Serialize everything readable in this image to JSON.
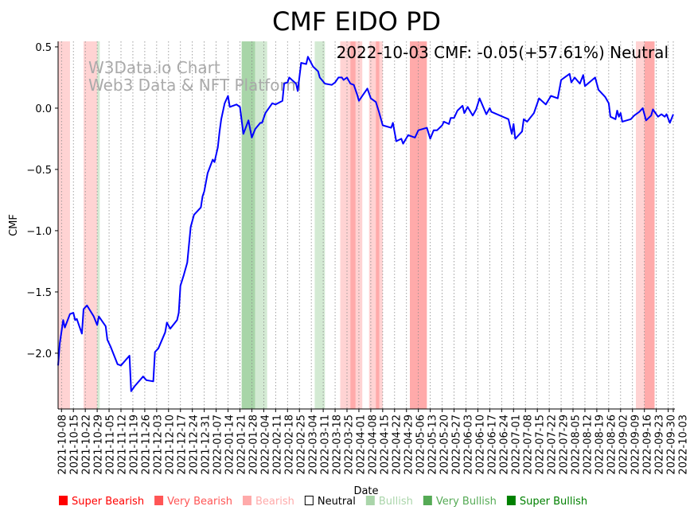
{
  "chart_data": {
    "type": "line",
    "title": "CMF EIDO PD",
    "annotation": "2022-10-03 CMF: -0.05(+57.61%) Neutral",
    "watermark": [
      "W3Data.io Chart",
      "Web3 Data & NFT Platform"
    ],
    "xlabel": "Date",
    "ylabel": "CMF",
    "ylim": [
      -2.455,
      0.545
    ],
    "start_date": "2021-10-06",
    "end_date": "2022-10-03",
    "yticks": [
      0.5,
      0.0,
      -0.5,
      -1.0,
      -1.5,
      -2.0
    ],
    "ytick_labels": [
      "0.5",
      "0.0",
      "−0.5",
      "−1.0",
      "−1.5",
      "−2.0"
    ],
    "xtick_labels": [
      "2021-10-08",
      "2021-10-15",
      "2021-10-22",
      "2021-10-29",
      "2021-11-05",
      "2021-11-12",
      "2021-11-19",
      "2021-11-26",
      "2021-12-03",
      "2021-12-10",
      "2021-12-17",
      "2021-12-24",
      "2021-12-31",
      "2022-01-07",
      "2022-01-14",
      "2022-01-21",
      "2022-01-28",
      "2022-02-04",
      "2022-02-11",
      "2022-02-18",
      "2022-02-25",
      "2022-03-04",
      "2022-03-11",
      "2022-03-18",
      "2022-03-25",
      "2022-04-01",
      "2022-04-08",
      "2022-04-15",
      "2022-04-22",
      "2022-04-29",
      "2022-05-06",
      "2022-05-13",
      "2022-05-20",
      "2022-05-27",
      "2022-06-03",
      "2022-06-10",
      "2022-06-17",
      "2022-06-24",
      "2022-07-01",
      "2022-07-08",
      "2022-07-15",
      "2022-07-22",
      "2022-07-29",
      "2022-08-05",
      "2022-08-12",
      "2022-08-19",
      "2022-08-26",
      "2022-09-02",
      "2022-09-09",
      "2022-09-16",
      "2022-09-23",
      "2022-09-30",
      "2022-10-03"
    ],
    "grid": "x-dotted",
    "series": [
      {
        "name": "CMF",
        "color": "#0000ff",
        "points_day_value": [
          [
            0,
            -2.1
          ],
          [
            1,
            -1.92
          ],
          [
            3,
            -1.73
          ],
          [
            4,
            -1.79
          ],
          [
            7,
            -1.68
          ],
          [
            9,
            -1.67
          ],
          [
            10,
            -1.73
          ],
          [
            11,
            -1.72
          ],
          [
            14,
            -1.84
          ],
          [
            15,
            -1.64
          ],
          [
            17,
            -1.61
          ],
          [
            21,
            -1.7
          ],
          [
            23,
            -1.77
          ],
          [
            24,
            -1.7
          ],
          [
            28,
            -1.78
          ],
          [
            29,
            -1.89
          ],
          [
            31,
            -1.95
          ],
          [
            35,
            -2.09
          ],
          [
            37,
            -2.1
          ],
          [
            42,
            -2.02
          ],
          [
            43,
            -2.31
          ],
          [
            45,
            -2.27
          ],
          [
            50,
            -2.19
          ],
          [
            52,
            -2.22
          ],
          [
            56,
            -2.23
          ],
          [
            57,
            -1.99
          ],
          [
            59,
            -1.96
          ],
          [
            63,
            -1.83
          ],
          [
            64,
            -1.75
          ],
          [
            66,
            -1.8
          ],
          [
            70,
            -1.73
          ],
          [
            71,
            -1.67
          ],
          [
            72,
            -1.45
          ],
          [
            74,
            -1.36
          ],
          [
            76,
            -1.26
          ],
          [
            78,
            -0.97
          ],
          [
            80,
            -0.87
          ],
          [
            84,
            -0.81
          ],
          [
            85,
            -0.72
          ],
          [
            86,
            -0.68
          ],
          [
            88,
            -0.53
          ],
          [
            91,
            -0.42
          ],
          [
            92,
            -0.44
          ],
          [
            94,
            -0.32
          ],
          [
            95,
            -0.19
          ],
          [
            96,
            -0.09
          ],
          [
            98,
            0.04
          ],
          [
            100,
            0.1
          ],
          [
            101,
            0.01
          ],
          [
            105,
            0.03
          ],
          [
            107,
            0.01
          ],
          [
            109,
            -0.21
          ],
          [
            112,
            -0.1
          ],
          [
            114,
            -0.24
          ],
          [
            116,
            -0.17
          ],
          [
            119,
            -0.12
          ],
          [
            120,
            -0.12
          ],
          [
            122,
            -0.04
          ],
          [
            126,
            0.04
          ],
          [
            128,
            0.03
          ],
          [
            132,
            0.06
          ],
          [
            133,
            0.2
          ],
          [
            135,
            0.21
          ],
          [
            136,
            0.25
          ],
          [
            140,
            0.2
          ],
          [
            141,
            0.14
          ],
          [
            143,
            0.37
          ],
          [
            146,
            0.36
          ],
          [
            147,
            0.42
          ],
          [
            150,
            0.34
          ],
          [
            153,
            0.3
          ],
          [
            154,
            0.25
          ],
          [
            157,
            0.2
          ],
          [
            161,
            0.19
          ],
          [
            163,
            0.21
          ],
          [
            165,
            0.25
          ],
          [
            167,
            0.25
          ],
          [
            168,
            0.23
          ],
          [
            170,
            0.25
          ],
          [
            172,
            0.2
          ],
          [
            174,
            0.19
          ],
          [
            176,
            0.11
          ],
          [
            177,
            0.06
          ],
          [
            182,
            0.16
          ],
          [
            184,
            0.08
          ],
          [
            187,
            0.05
          ],
          [
            189,
            -0.04
          ],
          [
            191,
            -0.14
          ],
          [
            196,
            -0.16
          ],
          [
            197,
            -0.12
          ],
          [
            199,
            -0.27
          ],
          [
            202,
            -0.25
          ],
          [
            203,
            -0.29
          ],
          [
            206,
            -0.22
          ],
          [
            210,
            -0.24
          ],
          [
            212,
            -0.18
          ],
          [
            217,
            -0.16
          ],
          [
            219,
            -0.25
          ],
          [
            221,
            -0.18
          ],
          [
            223,
            -0.18
          ],
          [
            226,
            -0.14
          ],
          [
            227,
            -0.11
          ],
          [
            230,
            -0.13
          ],
          [
            231,
            -0.08
          ],
          [
            233,
            -0.08
          ],
          [
            235,
            -0.02
          ],
          [
            238,
            0.02
          ],
          [
            239,
            -0.04
          ],
          [
            241,
            0.01
          ],
          [
            244,
            -0.06
          ],
          [
            246,
            -0.01
          ],
          [
            248,
            0.08
          ],
          [
            252,
            -0.05
          ],
          [
            254,
            0.0
          ],
          [
            255,
            -0.03
          ],
          [
            265,
            -0.09
          ],
          [
            267,
            -0.21
          ],
          [
            268,
            -0.13
          ],
          [
            269,
            -0.25
          ],
          [
            273,
            -0.19
          ],
          [
            274,
            -0.09
          ],
          [
            276,
            -0.11
          ],
          [
            280,
            -0.04
          ],
          [
            283,
            0.08
          ],
          [
            287,
            0.03
          ],
          [
            290,
            0.1
          ],
          [
            294,
            0.08
          ],
          [
            296,
            0.23
          ],
          [
            298,
            0.25
          ],
          [
            301,
            0.28
          ],
          [
            302,
            0.21
          ],
          [
            304,
            0.25
          ],
          [
            307,
            0.2
          ],
          [
            309,
            0.27
          ],
          [
            310,
            0.18
          ],
          [
            316,
            0.25
          ],
          [
            318,
            0.15
          ],
          [
            322,
            0.09
          ],
          [
            324,
            0.04
          ],
          [
            325,
            -0.07
          ],
          [
            328,
            -0.09
          ],
          [
            329,
            -0.02
          ],
          [
            330,
            -0.07
          ],
          [
            331,
            -0.04
          ],
          [
            332,
            -0.11
          ],
          [
            337,
            -0.09
          ],
          [
            339,
            -0.06
          ],
          [
            342,
            -0.03
          ],
          [
            344,
            0.0
          ],
          [
            346,
            -0.1
          ],
          [
            349,
            -0.06
          ],
          [
            350,
            -0.01
          ],
          [
            353,
            -0.07
          ],
          [
            355,
            -0.05
          ],
          [
            357,
            -0.07
          ],
          [
            358,
            -0.05
          ],
          [
            360,
            -0.12
          ],
          [
            362,
            -0.05
          ]
        ]
      }
    ],
    "regions_day_range": [
      {
        "state": "Bearish",
        "from": 0,
        "to": 7
      },
      {
        "state": "Bearish",
        "from": 15,
        "to": 23
      },
      {
        "state": "Bullish",
        "from": 23,
        "to": 24.5
      },
      {
        "state": "Very Bullish",
        "from": 108,
        "to": 116
      },
      {
        "state": "Bullish",
        "from": 116,
        "to": 123
      },
      {
        "state": "Bullish",
        "from": 151,
        "to": 157
      },
      {
        "state": "Bearish",
        "from": 166,
        "to": 179
      },
      {
        "state": "Very Bearish",
        "from": 172,
        "to": 175
      },
      {
        "state": "Bearish",
        "from": 183,
        "to": 191
      },
      {
        "state": "Very Bearish",
        "from": 187,
        "to": 189
      },
      {
        "state": "Very Bearish",
        "from": 207,
        "to": 217
      },
      {
        "state": "Bearish",
        "from": 340,
        "to": 345
      },
      {
        "state": "Very Bearish",
        "from": 345,
        "to": 351
      }
    ],
    "region_colors": {
      "Bearish": "#ffd3d3",
      "Very Bearish": "#ffaaaa",
      "Bullish": "#d3ead3",
      "Very Bullish": "#a8d5a8"
    },
    "legend": {
      "placement": "bottom",
      "items": [
        {
          "label": "Super Bearish",
          "color": "#ff0000"
        },
        {
          "label": "Very Bearish",
          "color": "#ff5555"
        },
        {
          "label": "Bearish",
          "color": "#ffaaaa"
        },
        {
          "label": "Neutral",
          "color": "#000000",
          "hollow": true
        },
        {
          "label": "Bullish",
          "color": "#aad5aa"
        },
        {
          "label": "Very Bullish",
          "color": "#55aa55"
        },
        {
          "label": "Super Bullish",
          "color": "#008000"
        }
      ]
    }
  }
}
